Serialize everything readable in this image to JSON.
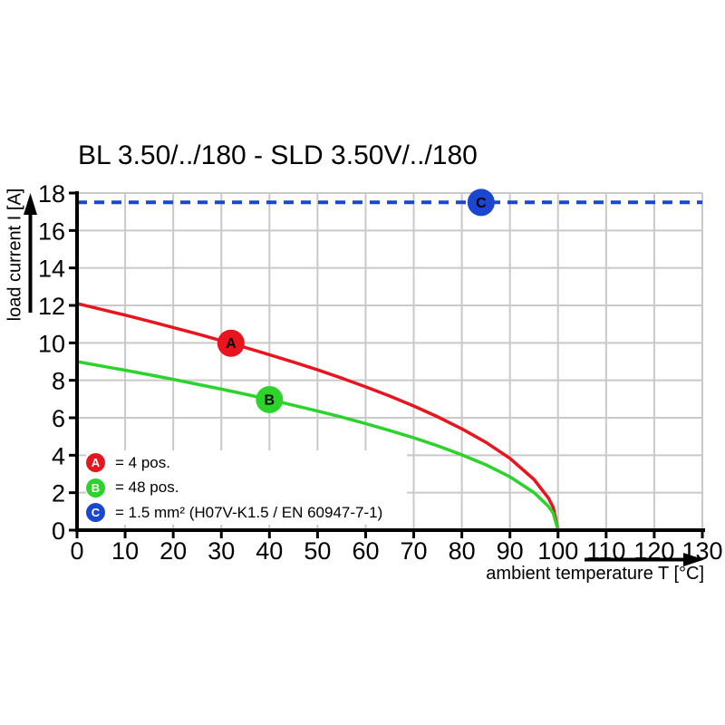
{
  "title": "BL 3.50/../180 - SLD 3.50V/../180",
  "colors": {
    "series_a_red": "#e8141e",
    "series_b_green": "#2bd32a",
    "series_c_blue": "#1b46d2",
    "grid": "#c9c9c9",
    "axis": "#000000",
    "background": "#ffffff",
    "marker_letter": "#ffffff"
  },
  "chart_data": {
    "type": "line",
    "title": "BL 3.50/../180 - SLD 3.50V/../180",
    "xlabel": "ambient temperature T [°C]",
    "ylabel": "load current I [A]",
    "xlim": [
      0,
      130
    ],
    "ylim": [
      0,
      18
    ],
    "xticks": [
      0,
      10,
      20,
      30,
      40,
      50,
      60,
      70,
      80,
      90,
      100,
      110,
      120,
      130
    ],
    "yticks": [
      0,
      2,
      4,
      6,
      8,
      10,
      12,
      14,
      16,
      18
    ],
    "grid": true,
    "legend_position": "inside-bottom-left",
    "series": [
      {
        "name": "A",
        "legend_text": "= 4 pos.",
        "color": "#e8141e",
        "style": "solid",
        "points": [
          [
            0,
            12.1
          ],
          [
            5,
            11.79
          ],
          [
            10,
            11.48
          ],
          [
            15,
            11.16
          ],
          [
            20,
            10.82
          ],
          [
            25,
            10.48
          ],
          [
            30,
            10.12
          ],
          [
            35,
            9.75
          ],
          [
            40,
            9.37
          ],
          [
            45,
            8.97
          ],
          [
            50,
            8.56
          ],
          [
            55,
            8.12
          ],
          [
            60,
            7.65
          ],
          [
            65,
            7.16
          ],
          [
            70,
            6.63
          ],
          [
            75,
            6.05
          ],
          [
            80,
            5.41
          ],
          [
            85,
            4.69
          ],
          [
            90,
            3.83
          ],
          [
            95,
            2.71
          ],
          [
            98,
            1.71
          ],
          [
            99,
            1.21
          ],
          [
            100,
            0
          ]
        ]
      },
      {
        "name": "B",
        "legend_text": "= 48 pos.",
        "color": "#2bd32a",
        "style": "solid",
        "points": [
          [
            0,
            9.0
          ],
          [
            5,
            8.77
          ],
          [
            10,
            8.54
          ],
          [
            15,
            8.3
          ],
          [
            20,
            8.05
          ],
          [
            25,
            7.79
          ],
          [
            30,
            7.53
          ],
          [
            35,
            7.26
          ],
          [
            40,
            6.97
          ],
          [
            45,
            6.67
          ],
          [
            50,
            6.36
          ],
          [
            55,
            6.04
          ],
          [
            60,
            5.69
          ],
          [
            65,
            5.32
          ],
          [
            70,
            4.93
          ],
          [
            75,
            4.5
          ],
          [
            80,
            4.02
          ],
          [
            85,
            3.49
          ],
          [
            90,
            2.85
          ],
          [
            95,
            2.01
          ],
          [
            98,
            1.27
          ],
          [
            99,
            0.9
          ],
          [
            100,
            0
          ]
        ]
      },
      {
        "name": "C",
        "legend_text": "= 1.5 mm² (H07V-K1.5 / EN 60947-7-1)",
        "color": "#1b46d2",
        "style": "dashed",
        "points": [
          [
            0,
            17.5
          ],
          [
            130,
            17.5
          ]
        ]
      }
    ],
    "markers": [
      {
        "label": "A",
        "x": 32,
        "y": 9.98,
        "color": "#e8141e"
      },
      {
        "label": "B",
        "x": 40,
        "y": 6.97,
        "color": "#2bd32a"
      },
      {
        "label": "C",
        "x": 84,
        "y": 17.5,
        "color": "#1b46d2"
      }
    ]
  }
}
